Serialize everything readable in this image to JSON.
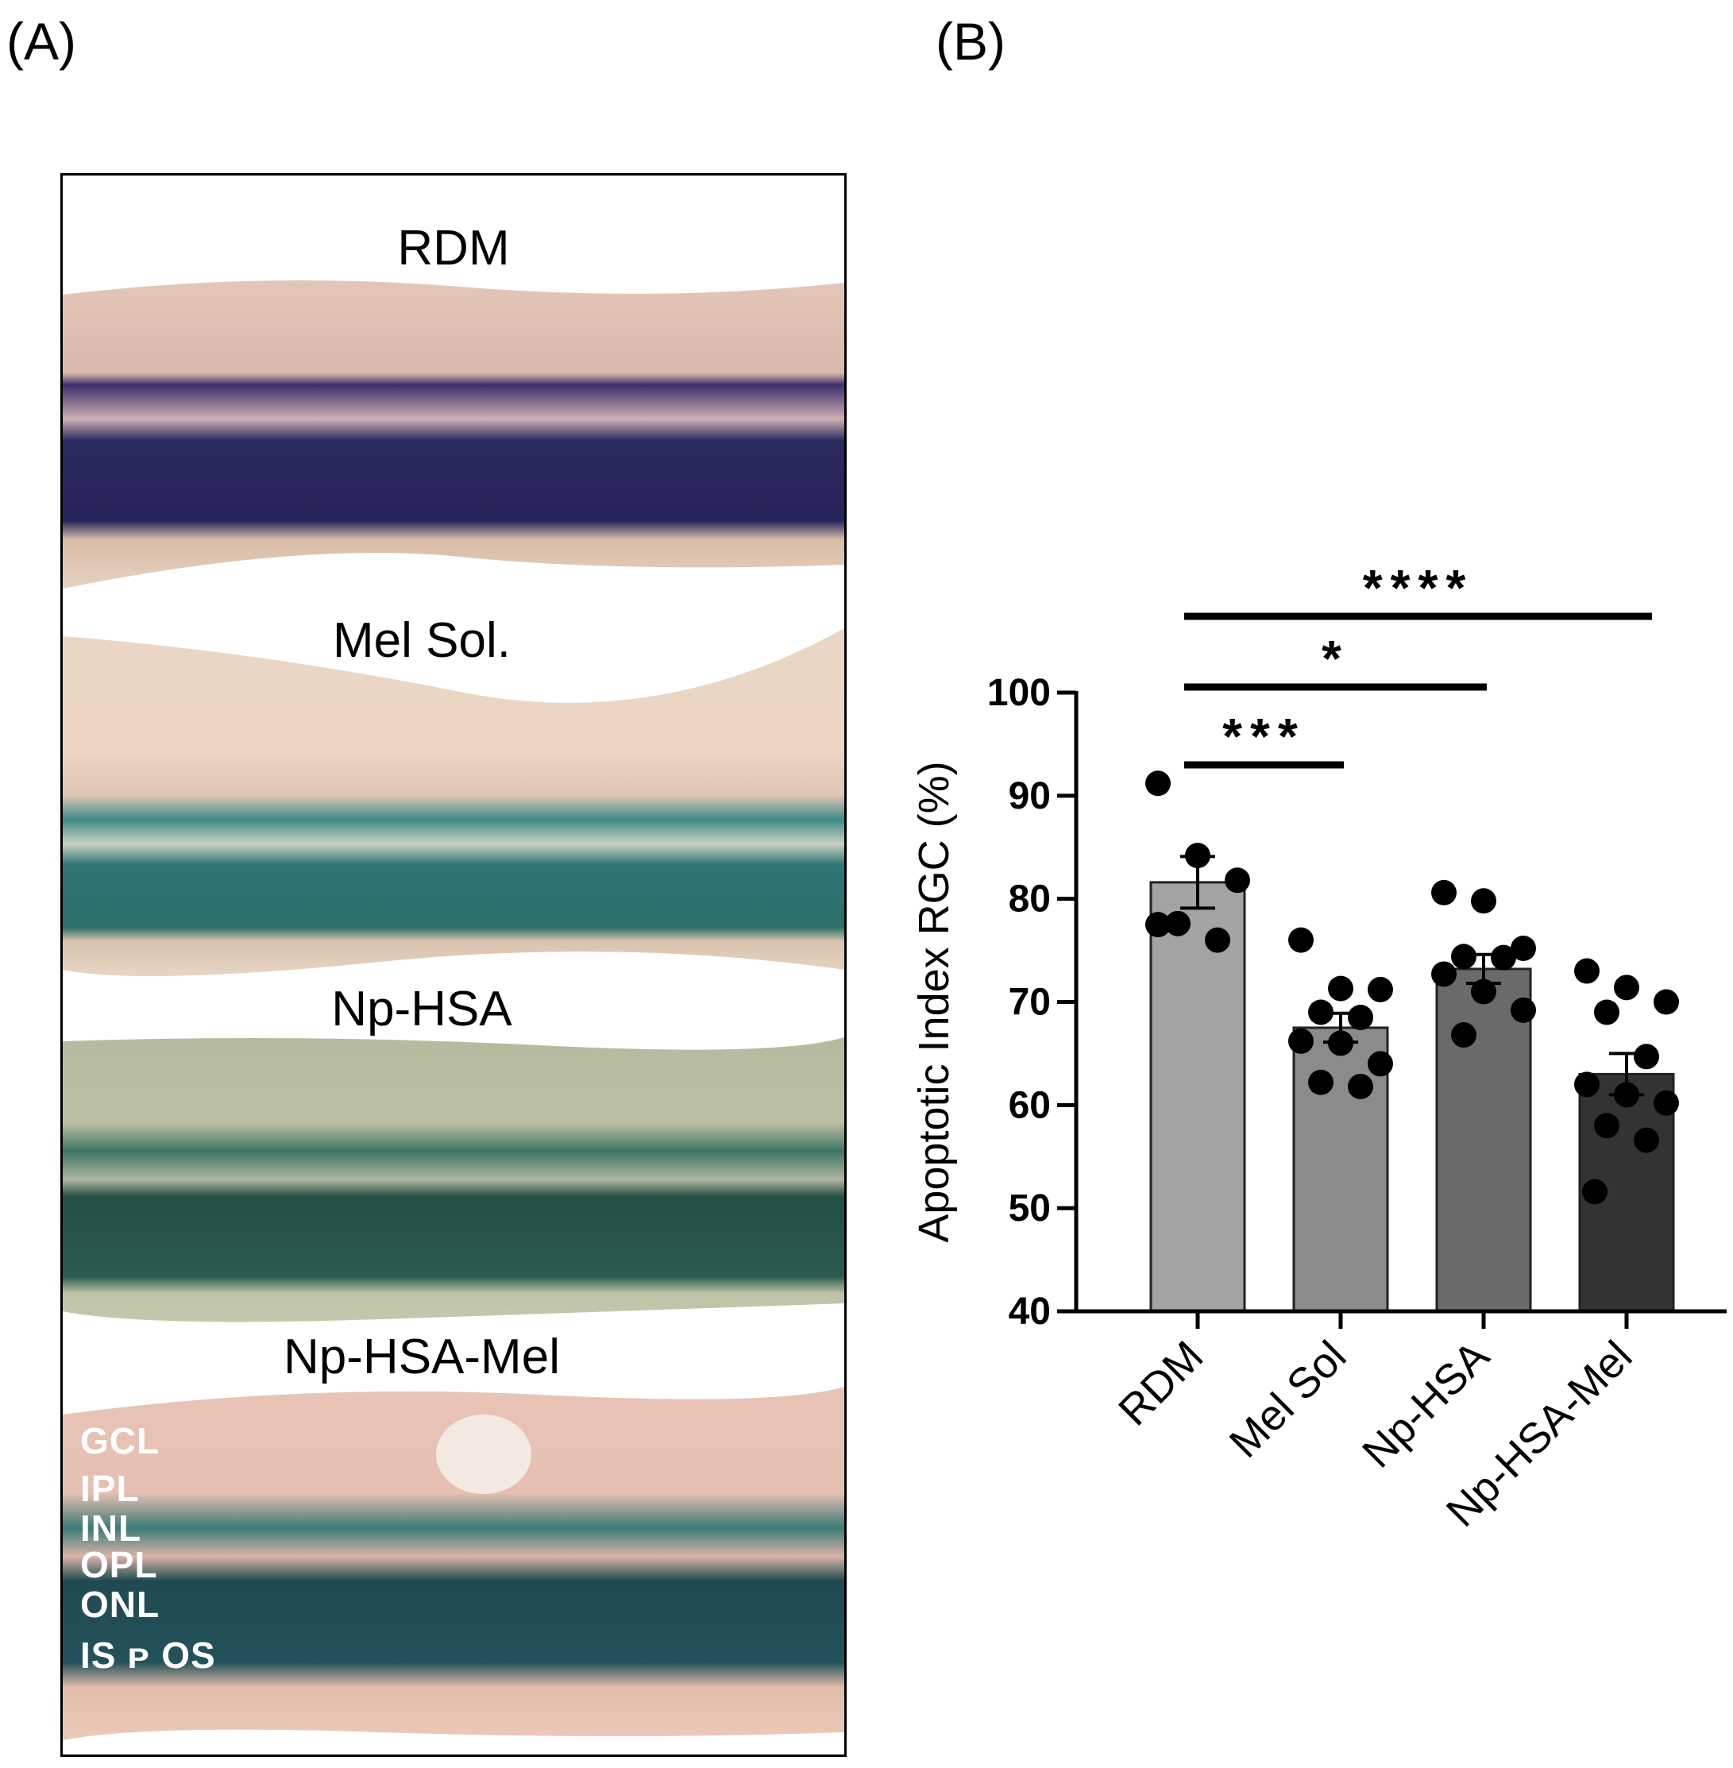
{
  "panels": {
    "a_label": "(A)",
    "b_label": "(B)"
  },
  "micrographs": [
    {
      "title": "RDM",
      "stain": "purple"
    },
    {
      "title": "Mel Sol.",
      "stain": "green-pink"
    },
    {
      "title": "Np-HSA",
      "stain": "green"
    },
    {
      "title": "Np-HSA-Mel",
      "stain": "green-pink"
    }
  ],
  "retina_layers": [
    "GCL",
    "IPL",
    "INL",
    "OPL",
    "ONL",
    "IS ᴘ OS"
  ],
  "colors": {
    "bar_rdm": "#a3a3a6",
    "bar_mel_sol": "#8b8b8d",
    "bar_np_hsa": "#6a6a6c",
    "bar_np_hsa_mel": "#333335",
    "points": "#000000"
  },
  "chart_data": {
    "type": "bar",
    "categories": [
      "RDM",
      "Mel Sol",
      "Np-HSA",
      "Np-HSA-Mel"
    ],
    "means": [
      81.6,
      67.5,
      73.2,
      63.0
    ],
    "sem": [
      2.5,
      1.4,
      1.4,
      2.0
    ],
    "points": [
      [
        91.2,
        84.2,
        81.8,
        77.6,
        76.0,
        77.5
      ],
      [
        76.0,
        71.3,
        71.2,
        69.0,
        68.5,
        66.2,
        66.0,
        64.0,
        62.2,
        61.8
      ],
      [
        80.6,
        79.8,
        75.2,
        74.4,
        74.3,
        72.7,
        71.0,
        69.2,
        66.8
      ],
      [
        73.0,
        71.4,
        70.0,
        69.0,
        64.7,
        62.0,
        61.0,
        60.2,
        58.0,
        56.6,
        51.6
      ]
    ],
    "ylabel": "Apoptotic Index RGC (%)",
    "xlabel": "",
    "ylim": [
      40,
      100
    ],
    "yticks": [
      40,
      50,
      60,
      70,
      80,
      90,
      100
    ],
    "grid": false,
    "significance": [
      {
        "from": "RDM",
        "to": "Mel Sol",
        "label": "***"
      },
      {
        "from": "RDM",
        "to": "Np-HSA",
        "label": "*"
      },
      {
        "from": "RDM",
        "to": "Np-HSA-Mel",
        "label": "****"
      }
    ]
  }
}
